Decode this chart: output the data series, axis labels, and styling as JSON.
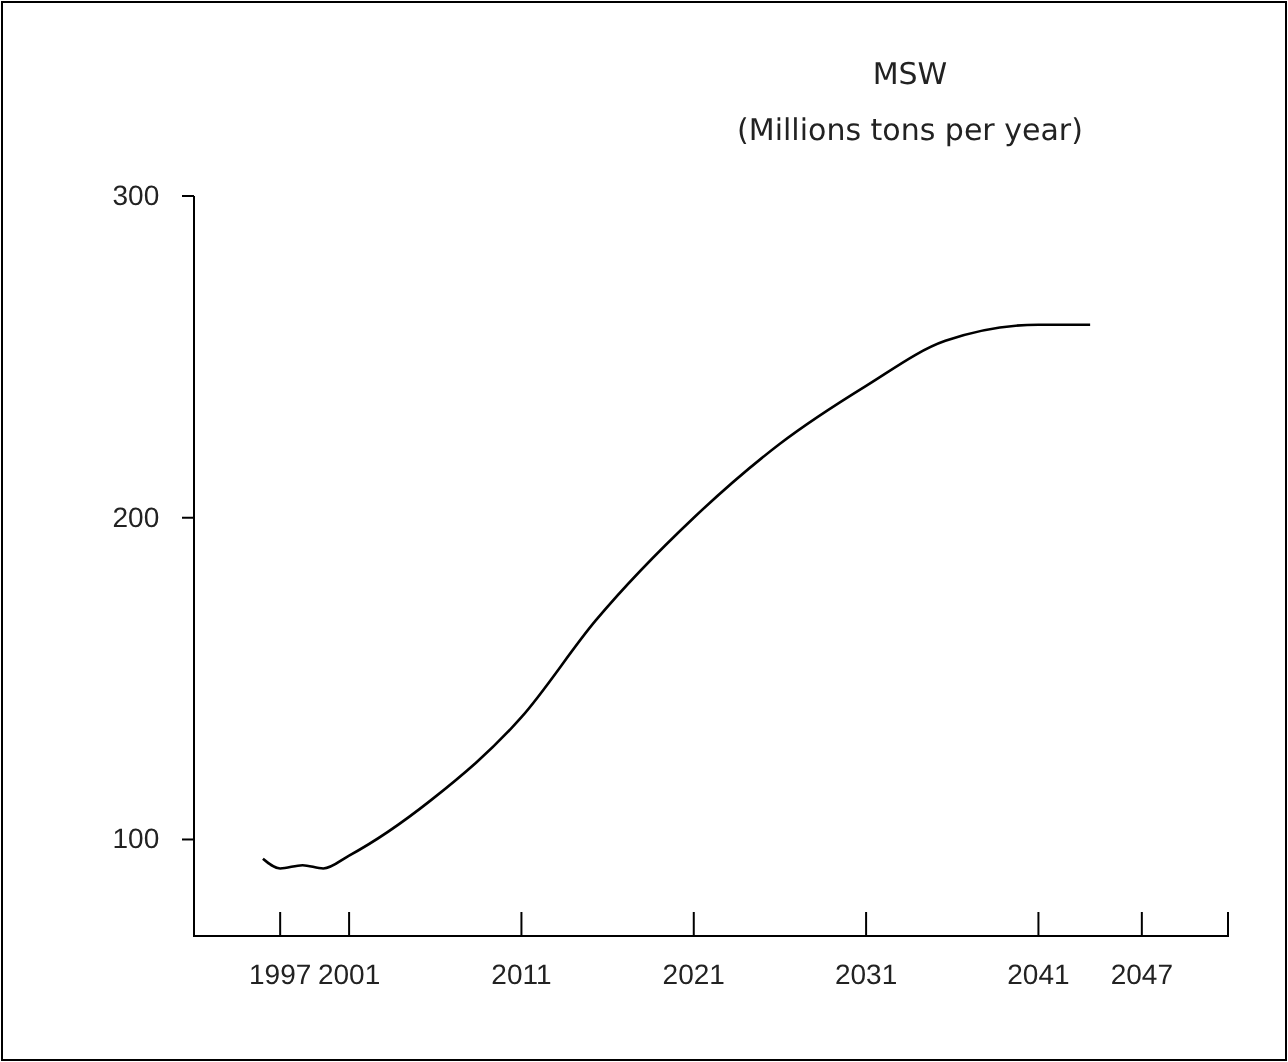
{
  "chart_data": {
    "type": "line",
    "title": "MSW",
    "subtitle": "(Millions tons per year)",
    "x": [
      1996,
      1997,
      1998.3,
      1999.5,
      2001,
      2005.7,
      2011,
      2015.3,
      2021,
      2026,
      2031,
      2035.6,
      2041,
      2044
    ],
    "series": [
      {
        "color": "#000000",
        "values": [
          94,
          91,
          92,
          91,
          95,
          112,
          138,
          168,
          200,
          223,
          241,
          255,
          260,
          260
        ]
      }
    ],
    "xlim": [
      1992,
      2052
    ],
    "xticks": [
      1997,
      2001,
      2011,
      2021,
      2031,
      2041,
      2047
    ],
    "ylim": [
      70,
      300
    ],
    "yticks": [
      100,
      200,
      300
    ],
    "marker": "none",
    "line_style": "solid"
  }
}
